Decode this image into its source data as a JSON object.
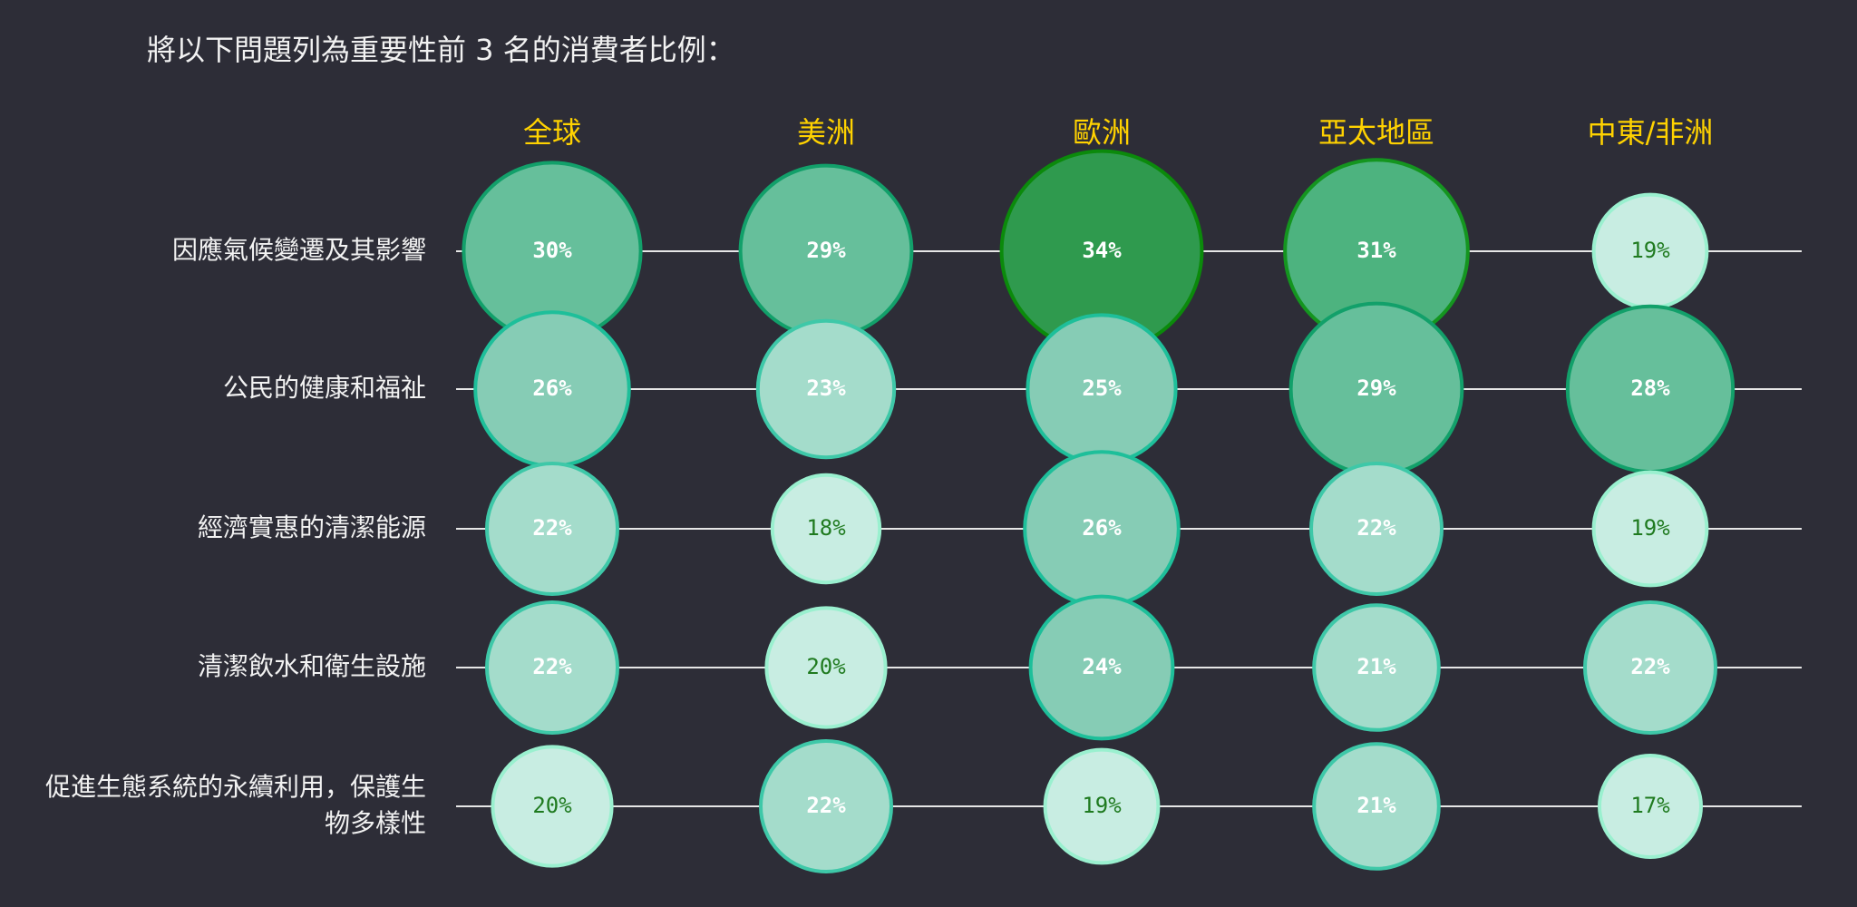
{
  "title": "將以下問題列為重要性前 3 名的消費者比例：",
  "colors": {
    "background": "#2d2d37",
    "header_text": "#ffd200",
    "label_text": "#f2f2f2",
    "connector_line": "#e6e6e6",
    "value_text_light": "#ffffff",
    "value_text_dark": "#1f7a1f",
    "bubble_scale": [
      "#c8ede2",
      "#a4dccb",
      "#86ccb5",
      "#66bf9b",
      "#4db37f",
      "#2f9a4e"
    ],
    "bubble_border_scale": [
      "#9af0cf",
      "#3ec8a8",
      "#1ebf9a",
      "#12a06a",
      "#14951f",
      "#0b8a0b"
    ]
  },
  "chart_data": {
    "type": "bubble",
    "title": "將以下問題列為重要性前 3 名的消費者比例：",
    "regions": [
      "全球",
      "美洲",
      "歐洲",
      "亞太地區",
      "中東/非洲"
    ],
    "issues": [
      "因應氣候變遷及其影響",
      "公民的健康和福祉",
      "經濟實惠的清潔能源",
      "清潔飲水和衛生設施",
      "促進生態系統的永續利用，保護生物多樣性"
    ],
    "issue_label_lines": [
      [
        "因應氣候變遷及其影響"
      ],
      [
        "公民的健康和福祉"
      ],
      [
        "經濟實惠的清潔能源"
      ],
      [
        "清潔飲水和衛生設施"
      ],
      [
        "促進生態系統的永續利用，保護生",
        "物多樣性"
      ]
    ],
    "values": [
      [
        30,
        29,
        34,
        31,
        19
      ],
      [
        26,
        23,
        25,
        29,
        28
      ],
      [
        22,
        18,
        26,
        22,
        19
      ],
      [
        22,
        20,
        24,
        21,
        22
      ],
      [
        20,
        22,
        19,
        21,
        17
      ]
    ],
    "unit": "%"
  }
}
